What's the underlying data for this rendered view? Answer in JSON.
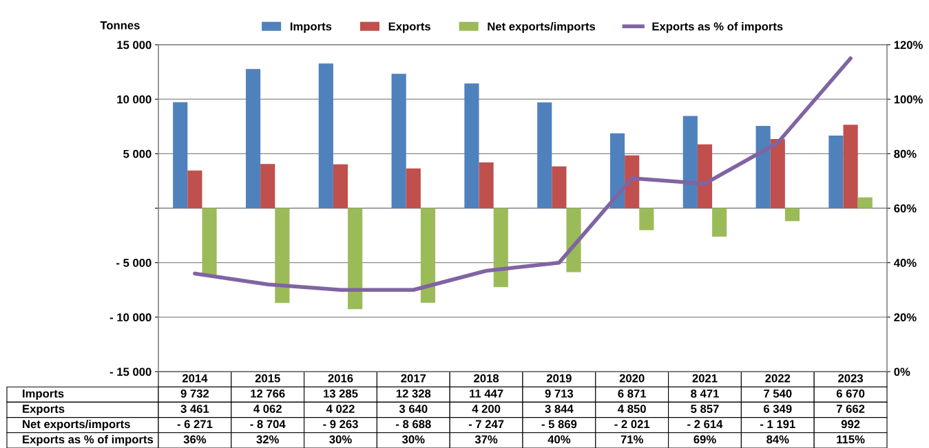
{
  "chart_data": {
    "type": "bar",
    "ylabel": "Tonnes",
    "categories": [
      "2014",
      "2015",
      "2016",
      "2017",
      "2018",
      "2019",
      "2020",
      "2021",
      "2022",
      "2023"
    ],
    "series": [
      {
        "name": "Imports",
        "color": "#4f81bd",
        "values": [
          9732,
          12766,
          13285,
          12328,
          11447,
          9713,
          6871,
          8471,
          7540,
          6670
        ],
        "value_labels": [
          "9 732",
          "12 766",
          "13 285",
          "12 328",
          "11 447",
          "9 713",
          "6 871",
          "8 471",
          "7 540",
          "6 670"
        ]
      },
      {
        "name": "Exports",
        "color": "#c0504d",
        "values": [
          3461,
          4062,
          4022,
          3640,
          4200,
          3844,
          4850,
          5857,
          6349,
          7662
        ],
        "value_labels": [
          "3 461",
          "4 062",
          "4 022",
          "3 640",
          "4 200",
          "3 844",
          "4 850",
          "5 857",
          "6 349",
          "7 662"
        ]
      },
      {
        "name": "Net exports/imports",
        "color": "#9bbb59",
        "values": [
          -6271,
          -8704,
          -9263,
          -8688,
          -7247,
          -5869,
          -2021,
          -2614,
          -1191,
          992
        ],
        "value_labels": [
          "- 6 271",
          "- 8 704",
          "- 9 263",
          "- 8 688",
          "- 7 247",
          "- 5 869",
          "- 2 021",
          "- 2 614",
          "- 1 191",
          "992"
        ]
      },
      {
        "name": "Exports as % of imports",
        "type": "line",
        "axis": "y2",
        "color": "#8064a2",
        "values": [
          36,
          32,
          30,
          30,
          37,
          40,
          71,
          69,
          84,
          115
        ],
        "value_labels": [
          "36%",
          "32%",
          "30%",
          "30%",
          "37%",
          "40%",
          "71%",
          "69%",
          "84%",
          "115%"
        ]
      }
    ],
    "ylim": [
      -15000,
      15000
    ],
    "yticks": [
      {
        "value": -15000,
        "label": "- 15 000"
      },
      {
        "value": -10000,
        "label": "- 10 000"
      },
      {
        "value": -5000,
        "label": "- 5 000"
      },
      {
        "value": 0,
        "label": null
      },
      {
        "value": 5000,
        "label": "5 000"
      },
      {
        "value": 10000,
        "label": "10 000"
      },
      {
        "value": 15000,
        "label": "15 000"
      }
    ],
    "y2lim": [
      0,
      120
    ],
    "y2ticks": [
      {
        "value": 0,
        "label": "0%"
      },
      {
        "value": 20,
        "label": "20%"
      },
      {
        "value": 40,
        "label": "40%"
      },
      {
        "value": 60,
        "label": "60%"
      },
      {
        "value": 80,
        "label": "80%"
      },
      {
        "value": 100,
        "label": "100%"
      },
      {
        "value": 120,
        "label": "120%"
      }
    ],
    "grid": "y",
    "legend": "top"
  }
}
